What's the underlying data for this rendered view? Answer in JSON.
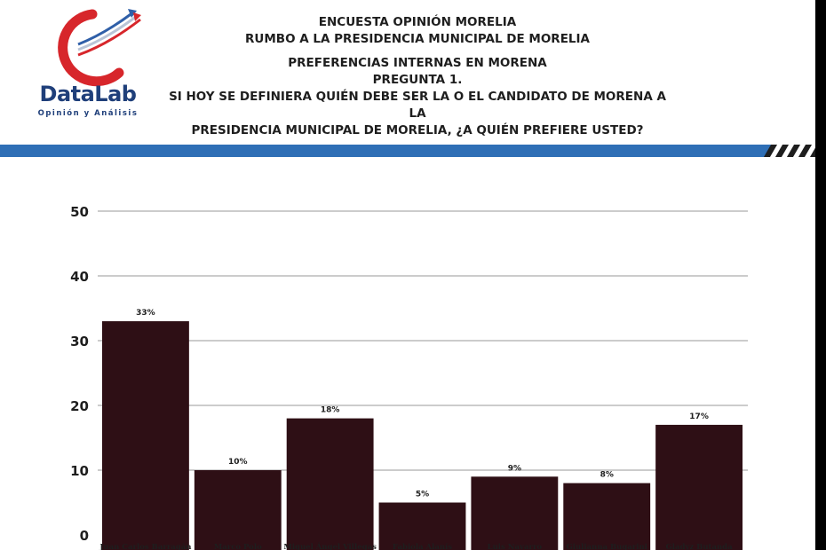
{
  "header": {
    "logo": {
      "name": "DataLab",
      "tagline": "Opinión y Análisis",
      "colors": {
        "primary": "#1f3f7a",
        "accent": "#d7262b"
      }
    },
    "title_lines": [
      "ENCUESTA OPINIÓN MORELIA",
      "RUMBO A LA PRESIDENCIA MUNICIPAL DE MORELIA",
      "PREFERENCIAS INTERNAS EN MORENA",
      "PREGUNTA 1.",
      "SI HOY SE DEFINIERA QUIÉN DEBE SER LA O EL CANDIDATO DE MORENA A LA",
      "PRESIDENCIA MUNICIPAL DE MORELIA, ¿A QUIÉN PREFIERE USTED?"
    ],
    "bar_color": "#2f6fb6"
  },
  "chart_data": {
    "type": "bar",
    "categories": [
      "Juan Carlos Barragán",
      "Marco Polo",
      "Miguel Ángel Villegas",
      "Fabiola Alanís",
      "Luis Navarro",
      "Giulianna Bugarini",
      "Gladyz Butanda"
    ],
    "values": [
      33,
      10,
      18,
      5,
      9,
      8,
      17
    ],
    "data_labels": [
      "33%",
      "10%",
      "18%",
      "5%",
      "9%",
      "8%",
      "17%"
    ],
    "ylim": [
      0,
      50
    ],
    "yticks": [
      0,
      10,
      20,
      30,
      40,
      50
    ],
    "grid": true,
    "bar_color": "#2e0f15"
  }
}
